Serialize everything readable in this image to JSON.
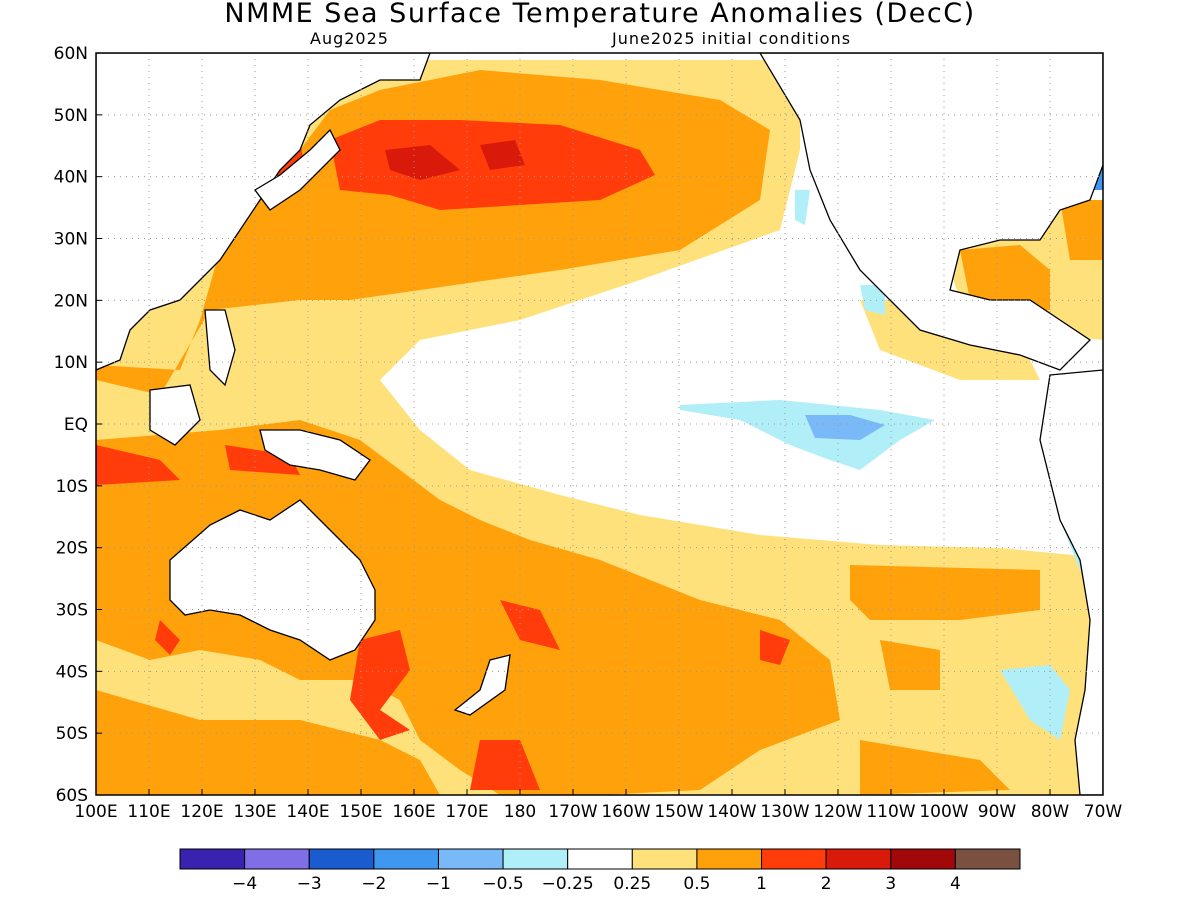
{
  "title": "NMME Sea Surface Temperature Anomalies (DecC)",
  "subtitle_left": "Aug2025",
  "subtitle_right": "June2025 initial conditions",
  "map": {
    "lat_range": [
      -60,
      60
    ],
    "lon_range_east": [
      100,
      290
    ],
    "grid": "dotted",
    "lat_ticks": [
      "60N",
      "50N",
      "40N",
      "30N",
      "20N",
      "10N",
      "EQ",
      "10S",
      "20S",
      "30S",
      "40S",
      "50S",
      "60S"
    ],
    "lon_ticks": [
      "100E",
      "110E",
      "120E",
      "130E",
      "140E",
      "150E",
      "160E",
      "170E",
      "180",
      "170W",
      "160W",
      "150W",
      "140W",
      "130W",
      "120W",
      "110W",
      "100W",
      "90W",
      "80W",
      "70W"
    ]
  },
  "colorbar": {
    "colors": [
      "#3a22b0",
      "#7f6ee6",
      "#1a5cd0",
      "#3f97ef",
      "#7ab9f7",
      "#b0eef8",
      "#ffffff",
      "#ffe17c",
      "#ffa10a",
      "#ff3c0a",
      "#d91a0a",
      "#a0080a",
      "#7a5040"
    ],
    "labels": [
      "−4",
      "−3",
      "−2",
      "−1",
      "−0.5",
      "−0.25",
      "0.25",
      "0.5",
      "1",
      "2",
      "3",
      "4"
    ]
  },
  "regions": [
    {
      "name": "west-pacific-warm-pool",
      "level": "orange",
      "color": "#ffa10a"
    },
    {
      "name": "north-pacific-warm-blob",
      "level": "red",
      "color": "#ff3c0a"
    },
    {
      "name": "north-pacific-core",
      "level": "dark-red",
      "color": "#d91a0a"
    },
    {
      "name": "equatorial-cold-tongue",
      "level": "light-blue",
      "color": "#b0eef8"
    },
    {
      "name": "equatorial-cold-core",
      "level": "blue",
      "color": "#7ab9f7"
    },
    {
      "name": "south-pacific-warm-band",
      "level": "orange",
      "color": "#ffa10a"
    },
    {
      "name": "tasman-warm",
      "level": "red",
      "color": "#ff3c0a"
    }
  ]
}
